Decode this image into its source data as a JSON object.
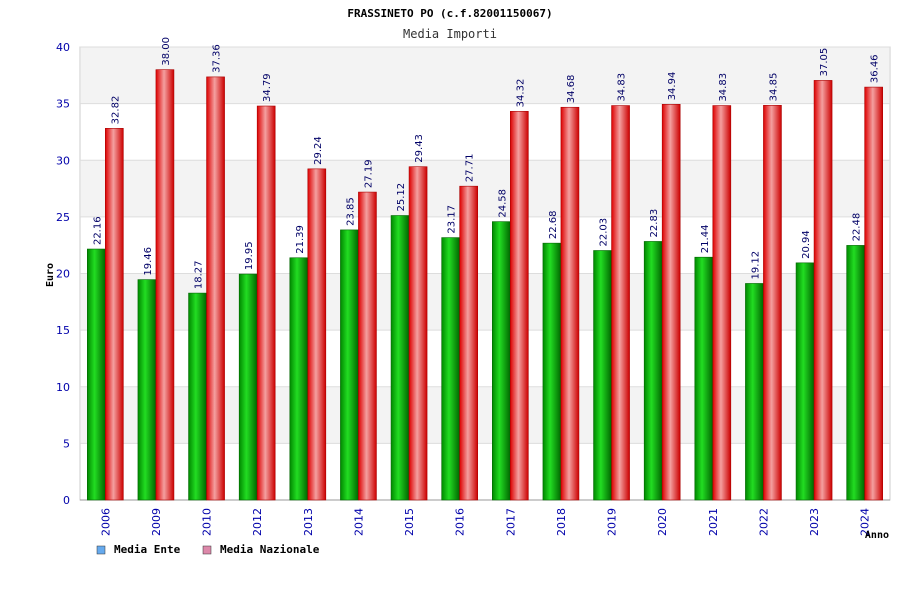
{
  "chart_data": {
    "type": "bar",
    "title": "FRASSINETO PO (c.f.82001150067)",
    "subtitle": "Media Importi",
    "xlabel": "Anno",
    "ylabel": "Euro",
    "ylim": [
      0,
      40
    ],
    "yticks": [
      0,
      5,
      10,
      15,
      20,
      25,
      30,
      35,
      40
    ],
    "categories": [
      "2006",
      "2009",
      "2010",
      "2012",
      "2013",
      "2014",
      "2015",
      "2016",
      "2017",
      "2018",
      "2019",
      "2020",
      "2021",
      "2022",
      "2023",
      "2024"
    ],
    "series": [
      {
        "name": "Media Ente",
        "color": "#00aa00",
        "legend_color": "#66aaee",
        "values": [
          22.16,
          19.46,
          18.27,
          19.95,
          21.39,
          23.85,
          25.12,
          23.17,
          24.58,
          22.68,
          22.03,
          22.83,
          21.44,
          19.12,
          20.94,
          22.48
        ],
        "labels": [
          "22.16",
          "19.46",
          "18.27",
          "19.95",
          "21.39",
          "23.85",
          "25.12",
          "23.17",
          "24.58",
          "22.68",
          "22.03",
          "22.83",
          "21.44",
          "19.12",
          "20.94",
          "22.48"
        ]
      },
      {
        "name": "Media Nazionale",
        "color": "#ee0000",
        "legend_color": "#dd88aa",
        "values": [
          32.82,
          38.0,
          37.36,
          34.79,
          29.24,
          27.19,
          29.43,
          27.71,
          34.32,
          34.68,
          34.83,
          34.94,
          34.83,
          34.85,
          37.05,
          36.46
        ],
        "labels": [
          "32.82",
          "38.00",
          "37.36",
          "34.79",
          "29.24",
          "27.19",
          "29.43",
          "27.71",
          "34.32",
          "34.68",
          "34.83",
          "34.94",
          "34.83",
          "34.85",
          "37.05",
          "36.46"
        ]
      }
    ],
    "legend_position": "bottom-left",
    "grid": true
  }
}
